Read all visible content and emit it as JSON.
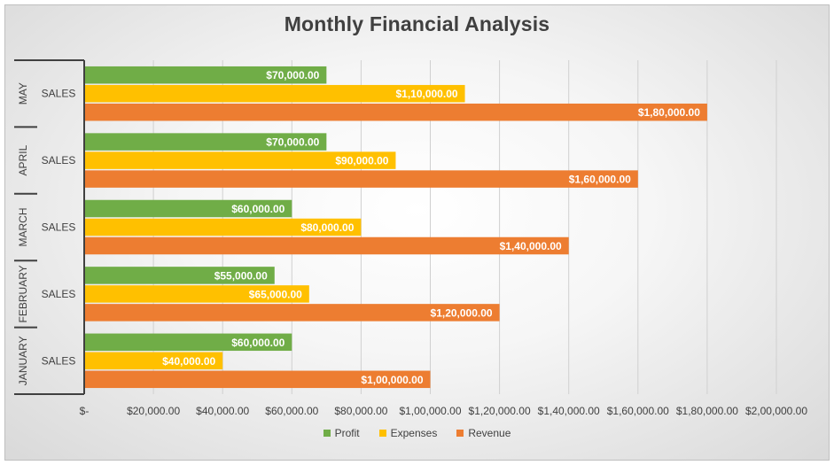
{
  "chart_data": {
    "type": "bar",
    "orientation": "horizontal",
    "title": "Monthly Financial Analysis",
    "categories": [
      "JANUARY",
      "FEBRUARY",
      "MARCH",
      "APRIL",
      "MAY"
    ],
    "sub_category": "SALES",
    "series": [
      {
        "name": "Profit",
        "color": "#70ad47",
        "values": [
          60000,
          55000,
          60000,
          70000,
          70000
        ],
        "labels": [
          "$60,000.00",
          "$55,000.00",
          "$60,000.00",
          "$70,000.00",
          "$70,000.00"
        ]
      },
      {
        "name": "Expenses",
        "color": "#ffc000",
        "values": [
          40000,
          65000,
          80000,
          90000,
          110000
        ],
        "labels": [
          "$40,000.00",
          "$65,000.00",
          "$80,000.00",
          "$90,000.00",
          "$1,10,000.00"
        ]
      },
      {
        "name": "Revenue",
        "color": "#ed7d31",
        "values": [
          100000,
          120000,
          140000,
          160000,
          180000
        ],
        "labels": [
          "$1,00,000.00",
          "$1,20,000.00",
          "$1,40,000.00",
          "$1,60,000.00",
          "$1,80,000.00"
        ]
      }
    ],
    "xlim": [
      0,
      200000
    ],
    "x_ticks": [
      0,
      20000,
      40000,
      60000,
      80000,
      100000,
      120000,
      140000,
      160000,
      180000,
      200000
    ],
    "x_tick_labels": [
      "$-",
      "$20,000.00",
      "$40,000.00",
      "$60,000.00",
      "$80,000.00",
      "$1,00,000.00",
      "$1,20,000.00",
      "$1,40,000.00",
      "$1,60,000.00",
      "$1,80,000.00",
      "$2,00,000.00"
    ],
    "grid": true,
    "legend_position": "bottom"
  }
}
